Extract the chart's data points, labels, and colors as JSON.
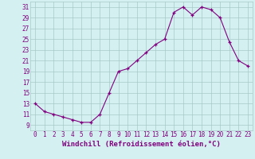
{
  "x": [
    0,
    1,
    2,
    3,
    4,
    5,
    6,
    7,
    8,
    9,
    10,
    11,
    12,
    13,
    14,
    15,
    16,
    17,
    18,
    19,
    20,
    21,
    22,
    23
  ],
  "y": [
    13,
    11.5,
    11,
    10.5,
    10,
    9.5,
    9.5,
    11,
    15,
    19,
    19.5,
    21,
    22.5,
    24,
    25,
    30,
    31,
    29.5,
    31,
    30.5,
    29,
    24.5,
    21,
    20
  ],
  "xlabel": "Windchill (Refroidissement éolien,°C)",
  "ylim": [
    8,
    32
  ],
  "xlim": [
    -0.5,
    23.5
  ],
  "yticks": [
    9,
    11,
    13,
    15,
    17,
    19,
    21,
    23,
    25,
    27,
    29,
    31
  ],
  "xticks": [
    0,
    1,
    2,
    3,
    4,
    5,
    6,
    7,
    8,
    9,
    10,
    11,
    12,
    13,
    14,
    15,
    16,
    17,
    18,
    19,
    20,
    21,
    22,
    23
  ],
  "line_color": "#800080",
  "marker": "+",
  "bg_color": "#d4f0f0",
  "grid_color": "#a8c8c8",
  "tick_label_fontsize": 5.5,
  "xlabel_fontsize": 6.5
}
